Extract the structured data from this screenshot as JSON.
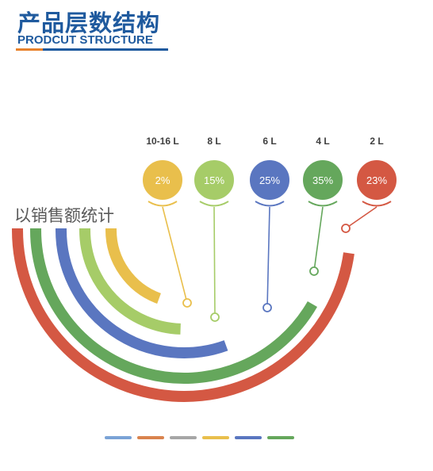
{
  "header": {
    "title_cn": "产品层数结构",
    "title_en": "PRODCUT STRUCTURE",
    "accent_orange": "#e8822c",
    "accent_blue": "#1f5a9e"
  },
  "chart_data": {
    "type": "radial-bar",
    "side_label": "以销售额统计",
    "categories": [
      "10-16 L",
      "8 L",
      "6 L",
      "4 L",
      "2 L"
    ],
    "values": [
      2,
      15,
      25,
      35,
      23
    ],
    "value_labels": [
      "2%",
      "15%",
      "25%",
      "35%",
      "23%"
    ],
    "colors": [
      "#e9bf4c",
      "#a6cc68",
      "#5a76c0",
      "#65a75c",
      "#d45843"
    ]
  },
  "legend_bar": {
    "colors": [
      "#7aa3d6",
      "#d9834e",
      "#a6a6a6",
      "#e9bf4c",
      "#5a76c0",
      "#65a75c"
    ]
  }
}
